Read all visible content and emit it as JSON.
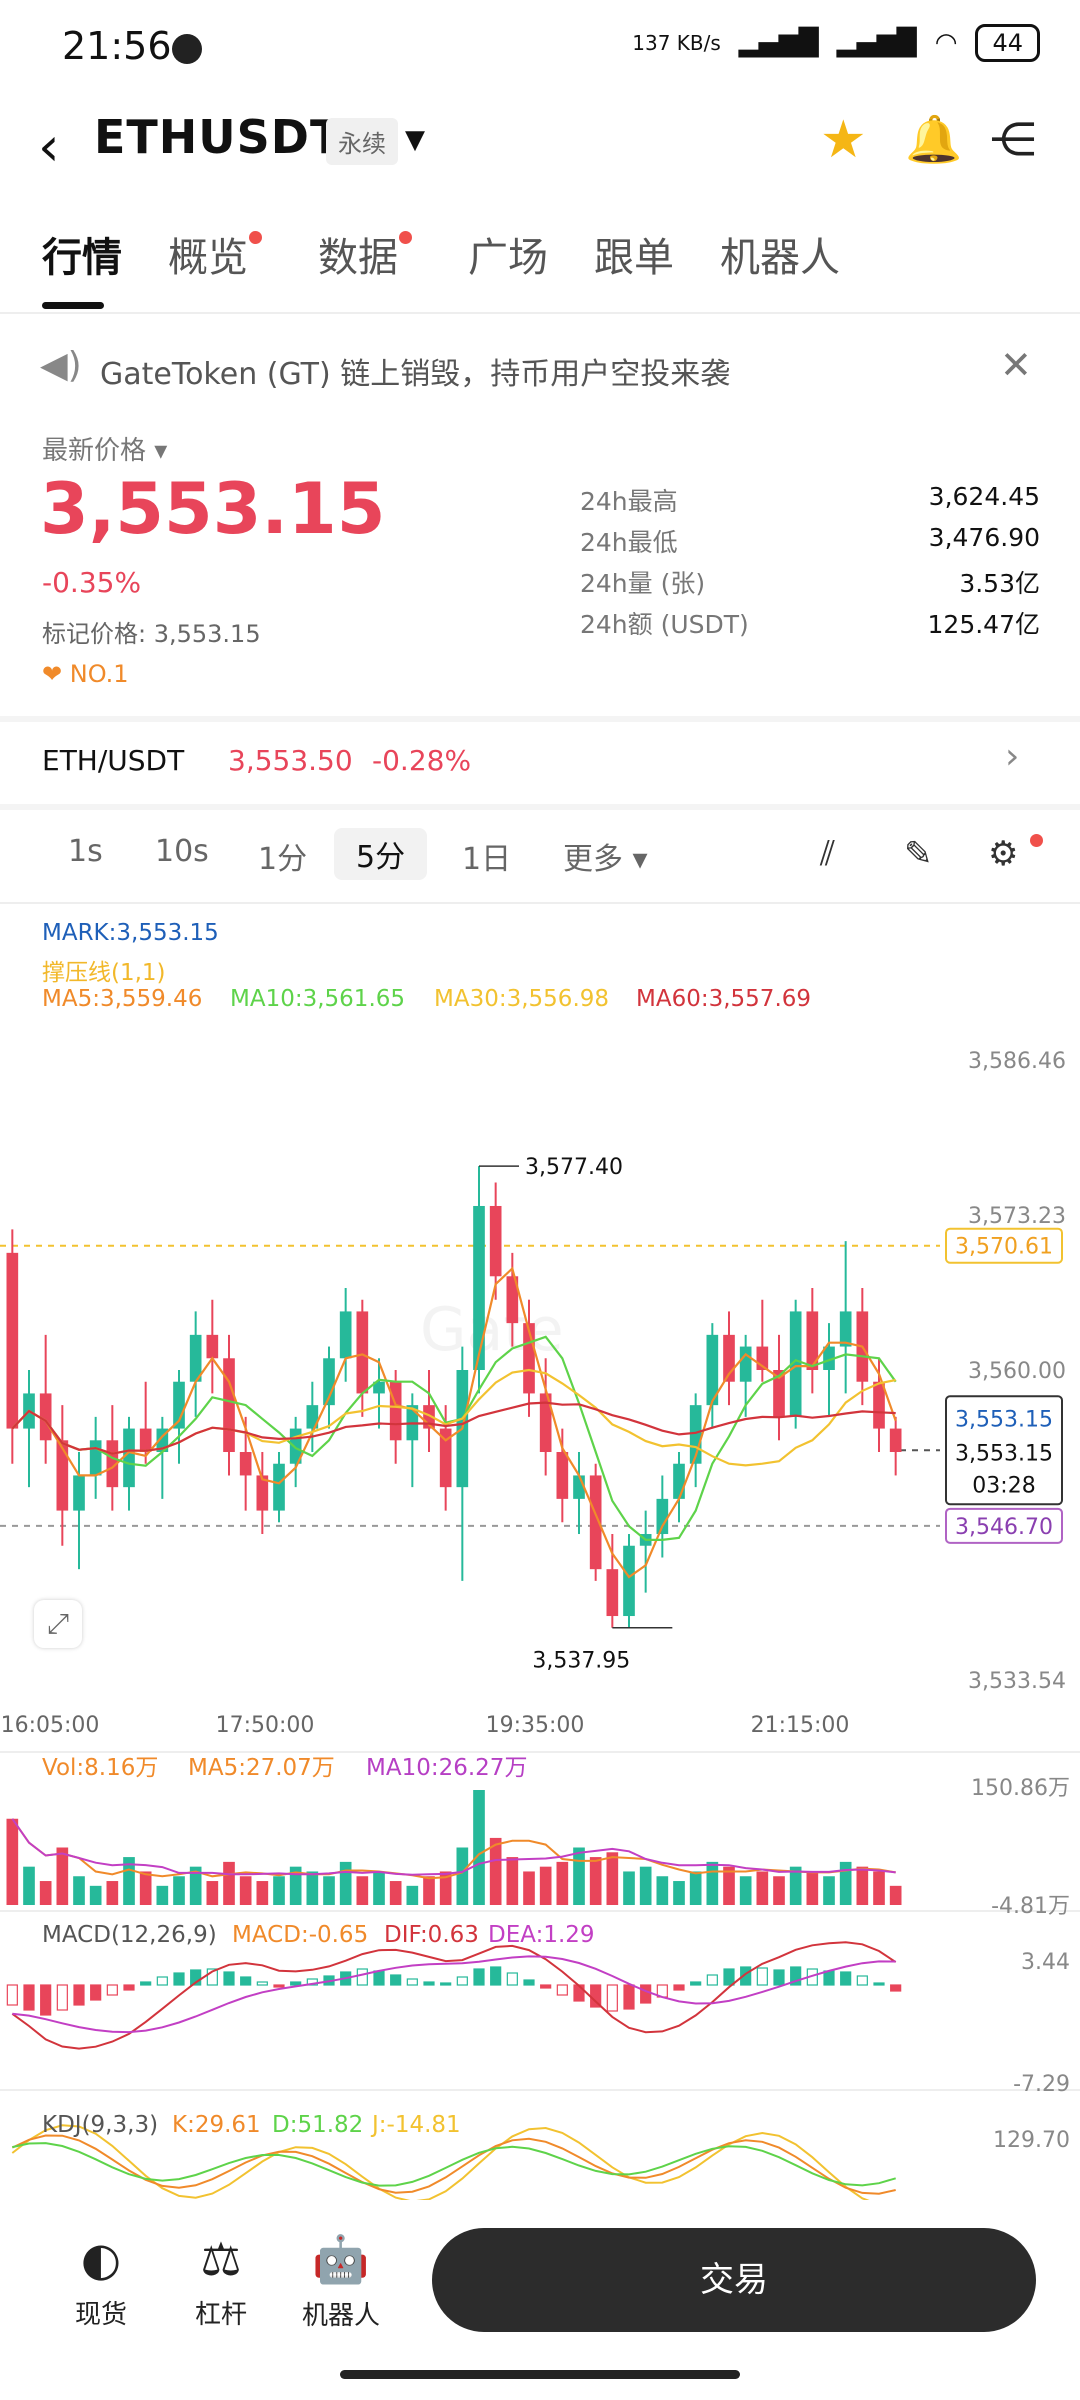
{
  "status_bar": {
    "time": "21:56",
    "network_speed": "137 KB/s",
    "signal1": "HD",
    "signal2": "HD",
    "battery": "44"
  },
  "header": {
    "back_icon": "chevron-left-icon",
    "pair": "ETHUSDT",
    "contract_type": "永续"
  },
  "tabs": [
    {
      "label": "行情",
      "dot": false
    },
    {
      "label": "概览",
      "dot": true
    },
    {
      "label": "数据",
      "dot": true
    },
    {
      "label": "广场",
      "dot": false
    },
    {
      "label": "跟单",
      "dot": false
    },
    {
      "label": "机器人",
      "dot": false
    }
  ],
  "notice": {
    "text": "GateToken (GT) 链上销毁，持币用户空投来袭"
  },
  "price": {
    "label": "最新价格",
    "last": "3,553.15",
    "change_pct": "-0.35%",
    "mark_label": "标记价格: 3,553.15",
    "rank": "NO.1"
  },
  "stats": [
    {
      "k": "24h最高",
      "v": "3,624.45"
    },
    {
      "k": "24h最低",
      "v": "3,476.90"
    },
    {
      "k": "24h量 (张)",
      "v": "3.53亿"
    },
    {
      "k": "24h额 (USDT)",
      "v": "125.47亿"
    }
  ],
  "spot": {
    "pair": "ETH/USDT",
    "price": "3,553.50",
    "change": "-0.28%"
  },
  "intervals": [
    "1s",
    "10s",
    "1分",
    "5分",
    "1日",
    "更多"
  ],
  "legend": {
    "mark": "MARK:3,553.15",
    "sr": "撑压线(1,1)",
    "ma5": "MA5:3,559.46",
    "ma10": "MA10:3,561.65",
    "ma30": "MA30:3,556.98",
    "ma60": "MA60:3,557.69"
  },
  "chart_data": {
    "type": "candlestick",
    "y_ticks": [
      "3,586.46",
      "3,573.23",
      "3,560.00",
      "3,533.54"
    ],
    "x_ticks": [
      "16:05:00",
      "17:50:00",
      "19:35:00",
      "21:15:00"
    ],
    "high_label": "3,577.40",
    "low_label": "3,537.95",
    "resistance": "3,570.61",
    "support": "3,546.70",
    "current_mark": "3,553.15",
    "current_last": "3,553.15",
    "countdown": "03:28",
    "ylim": [
      3533.54,
      3586.46
    ],
    "candles": [
      [
        3570,
        3572,
        3552,
        3555
      ],
      [
        3555,
        3560,
        3550,
        3558
      ],
      [
        3558,
        3563,
        3552,
        3554
      ],
      [
        3554,
        3557,
        3545,
        3548
      ],
      [
        3548,
        3553,
        3543,
        3551
      ],
      [
        3551,
        3556,
        3549,
        3554
      ],
      [
        3554,
        3557,
        3548,
        3550
      ],
      [
        3550,
        3556,
        3548,
        3555
      ],
      [
        3555,
        3559,
        3552,
        3553
      ],
      [
        3553,
        3556,
        3549,
        3555
      ],
      [
        3555,
        3560,
        3552,
        3559
      ],
      [
        3559,
        3565,
        3556,
        3563
      ],
      [
        3563,
        3566,
        3558,
        3561
      ],
      [
        3561,
        3563,
        3551,
        3553
      ],
      [
        3553,
        3556,
        3548,
        3551
      ],
      [
        3551,
        3553,
        3546,
        3548
      ],
      [
        3548,
        3553,
        3547,
        3552
      ],
      [
        3552,
        3556,
        3550,
        3555
      ],
      [
        3555,
        3559,
        3553,
        3557
      ],
      [
        3557,
        3562,
        3555,
        3561
      ],
      [
        3561,
        3567,
        3559,
        3565
      ],
      [
        3565,
        3566,
        3556,
        3558
      ],
      [
        3558,
        3561,
        3555,
        3559
      ],
      [
        3559,
        3560,
        3552,
        3554
      ],
      [
        3554,
        3558,
        3550,
        3557
      ],
      [
        3557,
        3560,
        3553,
        3555
      ],
      [
        3555,
        3557,
        3548,
        3550
      ],
      [
        3550,
        3562,
        3542,
        3560
      ],
      [
        3560,
        3577.4,
        3558,
        3574
      ],
      [
        3574,
        3576,
        3566,
        3568
      ],
      [
        3568,
        3570,
        3562,
        3564
      ],
      [
        3564,
        3566,
        3556,
        3558
      ],
      [
        3558,
        3561,
        3551,
        3553
      ],
      [
        3553,
        3555,
        3547,
        3549
      ],
      [
        3549,
        3553,
        3546,
        3551
      ],
      [
        3551,
        3552,
        3542,
        3543
      ],
      [
        3543,
        3546,
        3538,
        3539
      ],
      [
        3539,
        3546,
        3538,
        3545
      ],
      [
        3545,
        3548,
        3541,
        3546
      ],
      [
        3546,
        3551,
        3544,
        3549
      ],
      [
        3549,
        3553,
        3547,
        3552
      ],
      [
        3552,
        3558,
        3550,
        3557
      ],
      [
        3557,
        3564,
        3555,
        3563
      ],
      [
        3563,
        3565,
        3557,
        3559
      ],
      [
        3559,
        3563,
        3556,
        3562
      ],
      [
        3562,
        3566,
        3559,
        3560
      ],
      [
        3560,
        3563,
        3554,
        3556
      ],
      [
        3556,
        3566,
        3555,
        3565
      ],
      [
        3565,
        3567,
        3558,
        3560
      ],
      [
        3560,
        3564,
        3556,
        3562
      ],
      [
        3562,
        3571,
        3558,
        3565
      ],
      [
        3565,
        3567,
        3557,
        3559
      ],
      [
        3559,
        3561,
        3553,
        3555
      ],
      [
        3555,
        3556,
        3551,
        3553
      ]
    ]
  },
  "volume": {
    "legend_vol": "Vol:8.16万",
    "legend_ma5": "MA5:27.07万",
    "legend_ma10": "MA10:26.27万",
    "ymax": "150.86万",
    "ymin": "-4.81万",
    "values": [
      90,
      40,
      25,
      60,
      30,
      20,
      25,
      50,
      35,
      20,
      30,
      40,
      25,
      45,
      30,
      25,
      30,
      40,
      35,
      30,
      45,
      30,
      35,
      25,
      20,
      30,
      35,
      60,
      120,
      70,
      50,
      35,
      40,
      45,
      60,
      50,
      55,
      35,
      40,
      30,
      25,
      35,
      45,
      40,
      30,
      35,
      30,
      40,
      35,
      30,
      45,
      40,
      35,
      20
    ]
  },
  "macd": {
    "label": "MACD(12,26,9)",
    "macd": "MACD:-0.65",
    "dif": "DIF:0.63",
    "dea": "DEA:1.29",
    "ymax": "3.44",
    "ymin": "-7.29",
    "hist": [
      -2,
      -2.5,
      -3,
      -2.5,
      -2,
      -1.5,
      -1,
      -0.5,
      0.3,
      0.8,
      1.2,
      1.5,
      1.6,
      1.3,
      0.8,
      0.3,
      -0.2,
      0.3,
      0.6,
      0.9,
      1.3,
      1.6,
      1.4,
      1.0,
      0.6,
      0.3,
      0.2,
      0.8,
      1.6,
      1.8,
      1.2,
      0.5,
      -0.3,
      -1.0,
      -1.6,
      -2.2,
      -2.6,
      -2.4,
      -1.8,
      -1.2,
      -0.5,
      0.3,
      1.0,
      1.6,
      1.8,
      1.7,
      1.5,
      1.8,
      1.6,
      1.4,
      1.3,
      0.9,
      0.2,
      -0.6
    ]
  },
  "kdj": {
    "label": "KDJ(9,3,3)",
    "k": "K:29.61",
    "d": "D:51.82",
    "j": "J:-14.81",
    "ymax": "129.70"
  },
  "bottom_nav": [
    {
      "label": "现货",
      "icon": "spot-icon"
    },
    {
      "label": "杠杆",
      "icon": "margin-icon"
    },
    {
      "label": "机器人",
      "icon": "robot-icon"
    }
  ],
  "trade_button": "交易",
  "colors": {
    "up": "#26b99a",
    "down": "#e8455a",
    "ma5": "#f08a2a",
    "ma10": "#5ed34a",
    "ma30": "#f2c230",
    "ma60": "#d2343c",
    "mark": "#1e5fb8",
    "macd_dea": "#c23fc4"
  }
}
